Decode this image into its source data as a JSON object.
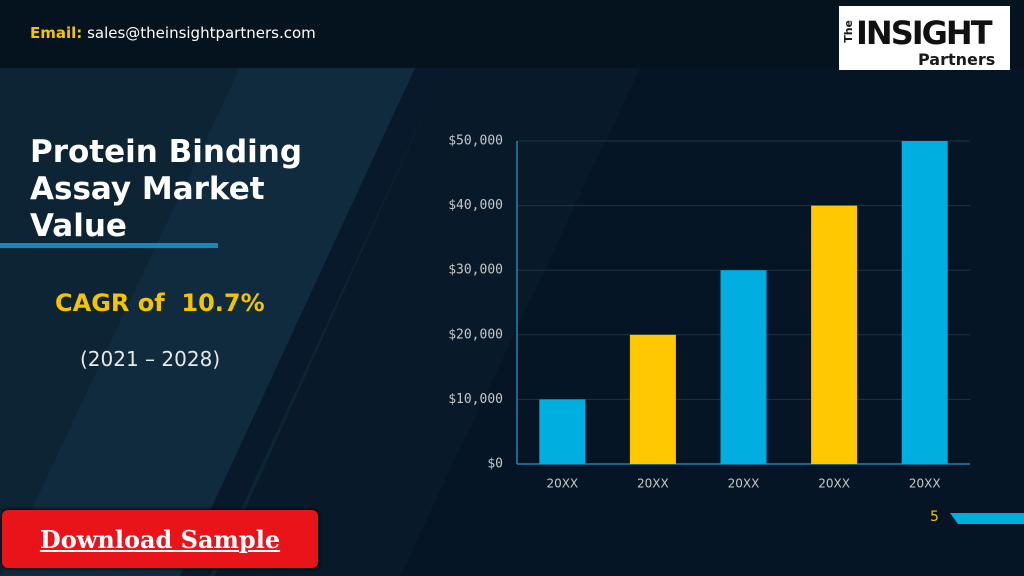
{
  "header": {
    "email_label": "Email:",
    "email": "sales@theinsightpartners.com",
    "logo": {
      "prefix": "The",
      "name": "INSIGHT",
      "sub": "Partners"
    }
  },
  "title": "Protein Binding Assay Market Value",
  "cagr": {
    "label": "CAGR of",
    "value": "10.7%",
    "period": "(2021 – 2028)"
  },
  "button": "Download Sample",
  "page_number": "5",
  "chart_data": {
    "type": "bar",
    "categories": [
      "20XX",
      "20XX",
      "20XX",
      "20XX",
      "20XX"
    ],
    "values": [
      10000,
      20000,
      30000,
      40000,
      50000
    ],
    "colors": [
      "#00aee0",
      "#ffc800",
      "#00aee0",
      "#ffc800",
      "#00aee0"
    ],
    "ylim": [
      0,
      50000
    ],
    "yticks": [
      {
        "value": 0,
        "label": "$0"
      },
      {
        "value": 10000,
        "label": "$10,000"
      },
      {
        "value": 20000,
        "label": "$20,000"
      },
      {
        "value": 30000,
        "label": "$30,000"
      },
      {
        "value": 40000,
        "label": "$40,000"
      },
      {
        "value": 50000,
        "label": "$50,000"
      }
    ],
    "grid": true
  }
}
